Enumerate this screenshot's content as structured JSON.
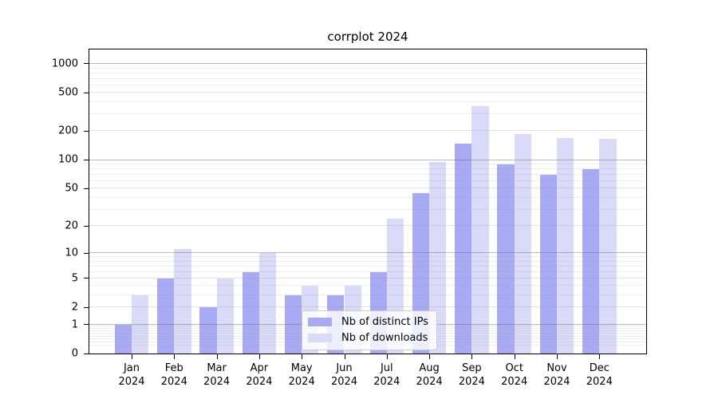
{
  "title": "corrplot 2024",
  "legend": {
    "items": [
      {
        "label": "Nb of distinct IPs",
        "color": "#a8aaf3"
      },
      {
        "label": "Nb of downloads",
        "color": "#d9dbf8"
      }
    ]
  },
  "y_axis": {
    "tick_labels": [
      "0",
      "1",
      "2",
      "5",
      "10",
      "20",
      "50",
      "100",
      "200",
      "500",
      "1000"
    ]
  },
  "x_axis": {
    "months": [
      "Jan",
      "Feb",
      "Mar",
      "Apr",
      "May",
      "Jun",
      "Jul",
      "Aug",
      "Sep",
      "Oct",
      "Nov",
      "Dec"
    ],
    "year": "2024"
  },
  "chart_data": {
    "type": "bar",
    "title": "corrplot 2024",
    "categories": [
      "Jan 2024",
      "Feb 2024",
      "Mar 2024",
      "Apr 2024",
      "May 2024",
      "Jun 2024",
      "Jul 2024",
      "Aug 2024",
      "Sep 2024",
      "Oct 2024",
      "Nov 2024",
      "Dec 2024"
    ],
    "series": [
      {
        "name": "Nb of distinct IPs",
        "color": "#a8aaf3",
        "values": [
          1,
          5,
          2,
          6,
          3,
          3,
          6,
          45,
          148,
          90,
          70,
          80
        ]
      },
      {
        "name": "Nb of downloads",
        "color": "#d9dbf8",
        "values": [
          3,
          11,
          5,
          10,
          4,
          4,
          24,
          95,
          365,
          185,
          168,
          165
        ]
      }
    ],
    "xlabel": "",
    "ylabel": "",
    "y_scale": "log1p",
    "y_ticks": [
      0,
      1,
      2,
      5,
      10,
      20,
      50,
      100,
      200,
      500,
      1000
    ],
    "ylim": [
      0,
      1410
    ],
    "grid": "horizontal major + minor log gridlines, drawn over bars",
    "legend_position": "inside lower-center"
  }
}
